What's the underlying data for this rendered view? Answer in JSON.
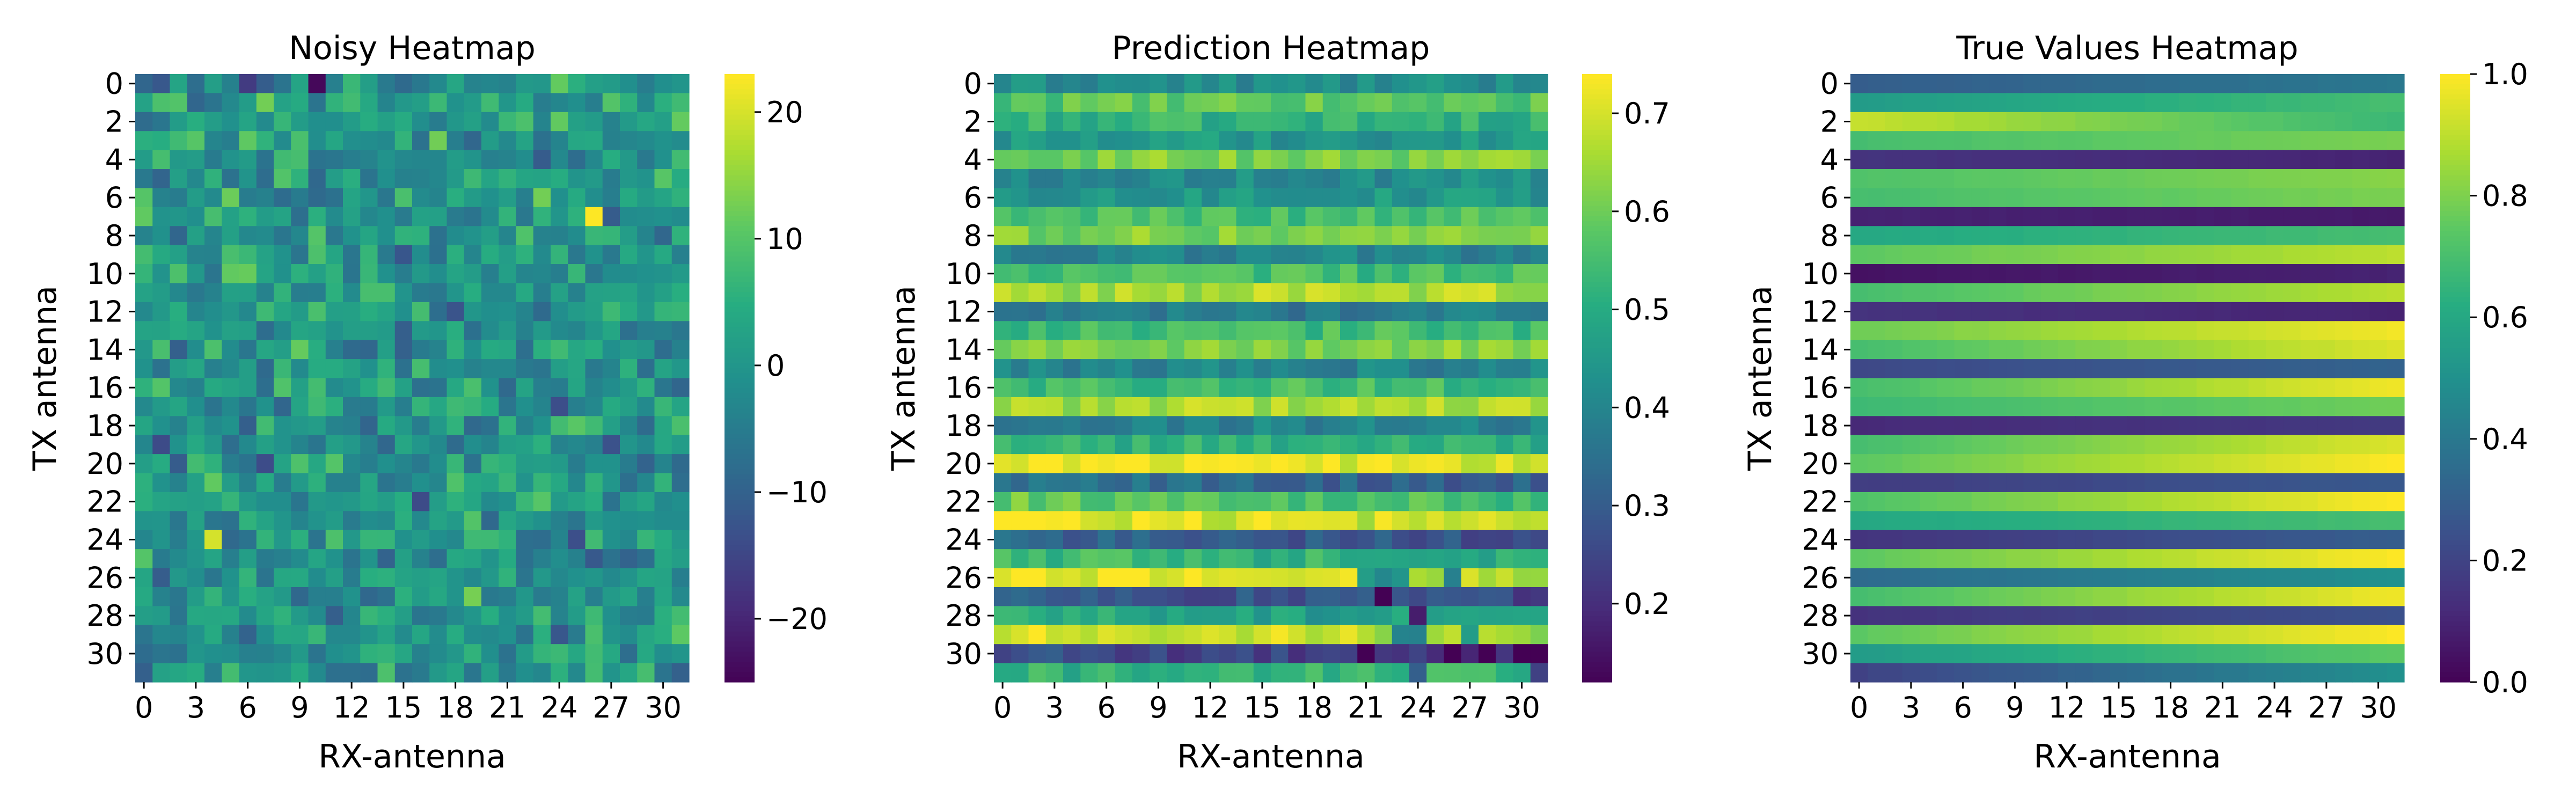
{
  "chart_data": [
    {
      "type": "heatmap",
      "title": "Noisy Heatmap",
      "xlabel": "RX-antenna",
      "ylabel": "TX antenna",
      "rows": 32,
      "cols": 32,
      "x_ticks": [
        "0",
        "3",
        "6",
        "9",
        "12",
        "15",
        "18",
        "21",
        "24",
        "27",
        "30"
      ],
      "y_ticks": [
        "0",
        "2",
        "4",
        "6",
        "8",
        "10",
        "12",
        "14",
        "16",
        "18",
        "20",
        "22",
        "24",
        "26",
        "28",
        "30"
      ],
      "colorbar": {
        "min": -25,
        "max": 23,
        "ticks": [
          "20",
          "10",
          "0",
          "−10",
          "−20"
        ]
      },
      "colormap": "viridis",
      "pattern": "random noise centred near 0 with sparse outliers (max ≈23 at TX 7, RX 26)"
    },
    {
      "type": "heatmap",
      "title": "Prediction Heatmap",
      "xlabel": "RX-antenna",
      "ylabel": "TX antenna",
      "rows": 32,
      "cols": 32,
      "x_ticks": [
        "0",
        "3",
        "6",
        "9",
        "12",
        "15",
        "18",
        "21",
        "24",
        "27",
        "30"
      ],
      "y_ticks": [
        "0",
        "2",
        "4",
        "6",
        "8",
        "10",
        "12",
        "14",
        "16",
        "18",
        "20",
        "22",
        "24",
        "26",
        "28",
        "30"
      ],
      "colorbar": {
        "min": 0.12,
        "max": 0.74,
        "ticks": [
          "0.7",
          "0.6",
          "0.5",
          "0.4",
          "0.3",
          "0.2"
        ]
      },
      "colormap": "viridis",
      "pattern": "horizontal bands per TX row, noisy, brighter on the left for high rows"
    },
    {
      "type": "heatmap",
      "title": "True Values Heatmap",
      "xlabel": "RX-antenna",
      "ylabel": "TX antenna",
      "rows": 32,
      "cols": 32,
      "x_ticks": [
        "0",
        "3",
        "6",
        "9",
        "12",
        "15",
        "18",
        "21",
        "24",
        "27",
        "30"
      ],
      "y_ticks": [
        "0",
        "2",
        "4",
        "6",
        "8",
        "10",
        "12",
        "14",
        "16",
        "18",
        "20",
        "22",
        "24",
        "26",
        "28",
        "30"
      ],
      "colorbar": {
        "min": 0.0,
        "max": 1.0,
        "ticks": [
          "1.0",
          "0.8",
          "0.6",
          "0.4",
          "0.2",
          "0.0"
        ]
      },
      "colormap": "viridis",
      "pattern": "smooth horizontal bands per TX row, values drift along RX"
    }
  ]
}
